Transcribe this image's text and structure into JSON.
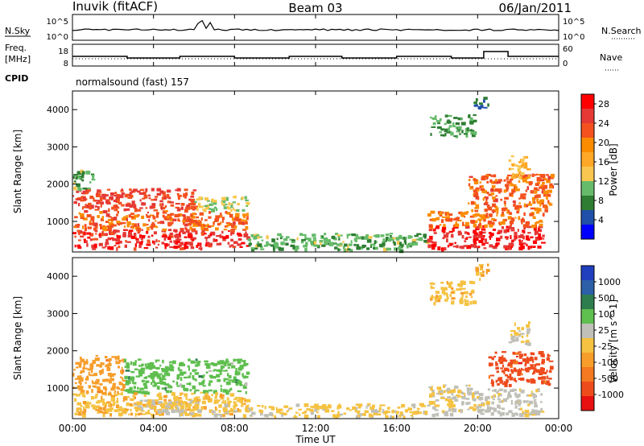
{
  "header": {
    "station": "Inuvik (fitACF)",
    "beam": "Beam 03",
    "date": "06/Jan/2011"
  },
  "top_panels": {
    "nsky_label": "N.Sky",
    "nsky_ticks": [
      "10^5",
      "10^0"
    ],
    "nsearch_label": "N.Search",
    "nsearch_ticks": [
      "10^5",
      "10^0"
    ],
    "freq_label": "Freq.",
    "freq_unit": "[MHz]",
    "freq_ticks": [
      "18",
      "8"
    ],
    "nave_label": "Nave",
    "nave_ticks": [
      "60",
      "0"
    ],
    "cpid_label": "CPID",
    "cpid_value": "normalsound (fast) 157"
  },
  "colors": {
    "power_scale": [
      "#0000ff",
      "#1f4fa8",
      "#2e7d32",
      "#66bb6a",
      "#f9c74f",
      "#ffa726",
      "#fb8c00",
      "#f4511e",
      "#e53935",
      "#ff0000"
    ],
    "velocity_scale": [
      "#1f3fbf",
      "#2b5fa8",
      "#2e7d4f",
      "#5fbf4f",
      "#c0c0b8",
      "#f5c242",
      "#f79d2a",
      "#f47920",
      "#ee4b1d",
      "#e81010"
    ]
  },
  "chart_data": [
    {
      "type": "heatmap",
      "panel": "power",
      "ylabel": "Slant Range [km]",
      "xlabel": "Time UT",
      "x_ticks": [
        "00:00",
        "04:00",
        "08:00",
        "12:00",
        "16:00",
        "20:00",
        "00:00"
      ],
      "xlim": [
        0,
        24
      ],
      "ylim": [
        180,
        4500
      ],
      "y_ticks": [
        1000,
        2000,
        3000,
        4000
      ],
      "colorbar_label": "Power [dB]",
      "colorbar_ticks": [
        "4",
        "8",
        "12",
        "16",
        "20",
        "24",
        "28"
      ],
      "colorbar_range": [
        0,
        30
      ],
      "regions": [
        {
          "t0": 0.0,
          "t1": 8.6,
          "r0": 300,
          "r1": 800,
          "value": 26
        },
        {
          "t0": 0.0,
          "t1": 8.6,
          "r0": 800,
          "r1": 1300,
          "value": 22
        },
        {
          "t0": 0.0,
          "t1": 6.0,
          "r0": 1300,
          "r1": 1900,
          "value": 24
        },
        {
          "t0": 6.0,
          "t1": 8.6,
          "r0": 1300,
          "r1": 1700,
          "value": 12
        },
        {
          "t0": 0.0,
          "t1": 1.0,
          "r0": 1900,
          "r1": 2400,
          "value": 10
        },
        {
          "t0": 8.6,
          "t1": 17.5,
          "r0": 250,
          "r1": 700,
          "value": 10
        },
        {
          "t0": 17.5,
          "t1": 23.2,
          "r0": 300,
          "r1": 900,
          "value": 27
        },
        {
          "t0": 17.5,
          "t1": 23.2,
          "r0": 900,
          "r1": 1300,
          "value": 21
        },
        {
          "t0": 19.5,
          "t1": 23.6,
          "r0": 1300,
          "r1": 2300,
          "value": 22
        },
        {
          "t0": 17.6,
          "t1": 19.8,
          "r0": 3300,
          "r1": 3900,
          "value": 9
        },
        {
          "t0": 19.8,
          "t1": 20.5,
          "r0": 4000,
          "r1": 4350,
          "value": 6
        },
        {
          "t0": 21.5,
          "t1": 22.5,
          "r0": 2200,
          "r1": 2800,
          "value": 15
        }
      ]
    },
    {
      "type": "heatmap",
      "panel": "velocity",
      "ylabel": "Slant Range [km]",
      "xlabel": "Time UT",
      "x_ticks": [
        "00:00",
        "04:00",
        "08:00",
        "12:00",
        "16:00",
        "20:00",
        "00:00"
      ],
      "xlim": [
        0,
        24
      ],
      "ylim": [
        180,
        4500
      ],
      "y_ticks": [
        1000,
        2000,
        3000,
        4000
      ],
      "colorbar_label": "Velocity [m s^-1]",
      "colorbar_ticks": [
        "1000",
        "500",
        "100",
        "25",
        "-25",
        "-100",
        "-500",
        "-1000"
      ],
      "colorbar_range": [
        -1000,
        1000
      ],
      "regions": [
        {
          "t0": 0.0,
          "t1": 2.5,
          "r0": 900,
          "r1": 1900,
          "value": -300
        },
        {
          "t0": 2.5,
          "t1": 8.6,
          "r0": 900,
          "r1": 1800,
          "value": 300
        },
        {
          "t0": 0.0,
          "t1": 8.6,
          "r0": 300,
          "r1": 900,
          "value": -150
        },
        {
          "t0": 3.0,
          "t1": 8.0,
          "r0": 300,
          "r1": 700,
          "value": 0
        },
        {
          "t0": 8.6,
          "t1": 17.5,
          "r0": 250,
          "r1": 600,
          "value": -60
        },
        {
          "t0": 17.5,
          "t1": 20.0,
          "r0": 300,
          "r1": 1100,
          "value": 0
        },
        {
          "t0": 20.0,
          "t1": 23.2,
          "r0": 300,
          "r1": 1000,
          "value": 60
        },
        {
          "t0": 20.5,
          "t1": 23.6,
          "r0": 1100,
          "r1": 2000,
          "value": -700
        },
        {
          "t0": 17.6,
          "t1": 19.8,
          "r0": 3300,
          "r1": 3900,
          "value": -120
        },
        {
          "t0": 19.8,
          "t1": 20.5,
          "r0": 3950,
          "r1": 4350,
          "value": -200
        },
        {
          "t0": 21.5,
          "t1": 22.5,
          "r0": 2200,
          "r1": 2800,
          "value": 0
        }
      ]
    }
  ]
}
